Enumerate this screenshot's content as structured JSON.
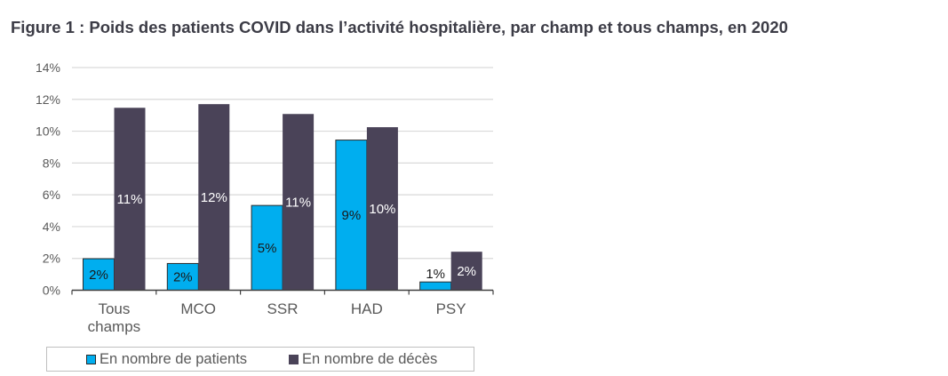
{
  "title": "Figure 1 : Poids des patients COVID dans l’activité hospitalière, par champ et tous champs, en 2020",
  "chart_data": {
    "type": "bar",
    "title": "Figure 1 : Poids des patients COVID dans l’activité hospitalière, par champ et tous champs, en 2020",
    "categories": [
      "Tous champs",
      "MCO",
      "SSR",
      "HAD",
      "PSY"
    ],
    "series": [
      {
        "name": "En nombre de patients",
        "color": "#00aeef",
        "values": [
          1.98,
          1.68,
          5.33,
          9.44,
          0.52
        ],
        "labels": [
          "2%",
          "2%",
          "5%",
          "9%",
          "1%"
        ],
        "label_color": "#1a1a1a"
      },
      {
        "name": "En nombre de décès",
        "color": "#4a4358",
        "values": [
          11.47,
          11.7,
          11.08,
          10.25,
          2.42
        ],
        "labels": [
          "11%",
          "12%",
          "11%",
          "10%",
          "2%"
        ],
        "label_color": "#ffffff"
      }
    ],
    "yticks": [
      "0%",
      "2%",
      "4%",
      "6%",
      "8%",
      "10%",
      "12%",
      "14%"
    ],
    "ylim": [
      0,
      14
    ],
    "xlabel": "",
    "ylabel": "",
    "grid": true,
    "legend": "bottom"
  }
}
